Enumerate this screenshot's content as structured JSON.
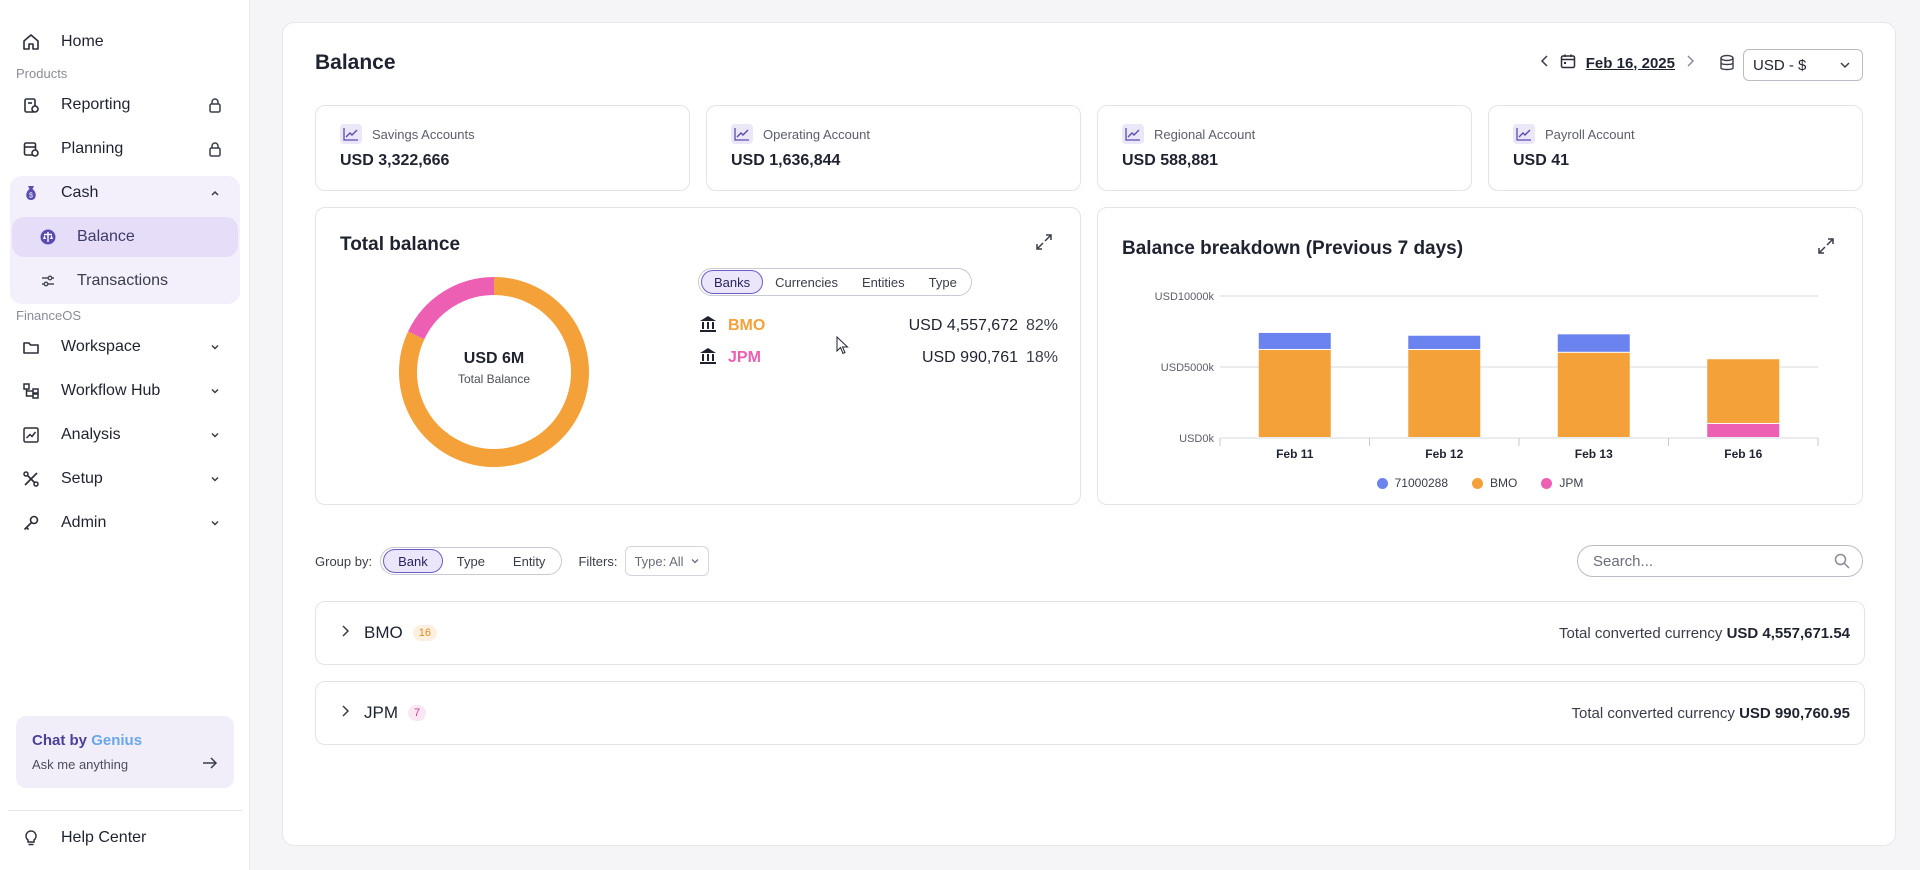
{
  "sidebar": {
    "home": "Home",
    "products_label": "Products",
    "reporting": "Reporting",
    "planning": "Planning",
    "cash": "Cash",
    "balance": "Balance",
    "transactions": "Transactions",
    "financeos_label": "FinanceOS",
    "workspace": "Workspace",
    "workflow_hub": "Workflow Hub",
    "analysis": "Analysis",
    "setup": "Setup",
    "admin": "Admin",
    "chat_title_prefix": "Chat by",
    "chat_title_brand": "Genius",
    "chat_placeholder": "Ask me anything",
    "help_center": "Help Center"
  },
  "header": {
    "title": "Balance",
    "date": "Feb 16, 2025",
    "currency": "USD - $"
  },
  "accounts": [
    {
      "name": "Savings Accounts",
      "value": "USD 3,322,666"
    },
    {
      "name": "Operating Account",
      "value": "USD 1,636,844"
    },
    {
      "name": "Regional Account",
      "value": "USD 588,881"
    },
    {
      "name": "Payroll Account",
      "value": "USD 41"
    }
  ],
  "total_balance": {
    "title": "Total balance",
    "center_value": "USD 6M",
    "center_label": "Total Balance",
    "tabs": [
      "Banks",
      "Currencies",
      "Entities",
      "Type"
    ],
    "active_tab": "Banks",
    "banks": [
      {
        "name": "BMO",
        "value": "USD 4,557,672",
        "pct": "82%",
        "color": "#f4a13a"
      },
      {
        "name": "JPM",
        "value": "USD 990,761",
        "pct": "18%",
        "color": "#ec5fb3"
      }
    ]
  },
  "breakdown": {
    "title": "Balance breakdown (Previous 7 days)"
  },
  "chart_data": [
    {
      "type": "pie",
      "categories": [
        "BMO",
        "JPM"
      ],
      "values": [
        82,
        18
      ],
      "colors": [
        "#f4a13a",
        "#ec5fb3"
      ],
      "title": "Total balance"
    },
    {
      "type": "bar",
      "stacked": true,
      "title": "Balance breakdown (Previous 7 days)",
      "categories": [
        "Feb 11",
        "Feb 12",
        "Feb 13",
        "Feb 16"
      ],
      "y_ticks": [
        "USD0k",
        "USD5000k",
        "USD10000k"
      ],
      "ylim": [
        0,
        10000
      ],
      "grid": true,
      "legend_position": "bottom",
      "series": [
        {
          "name": "71000288",
          "color": "#6b83ee",
          "values": [
            1200,
            1000,
            1300,
            0
          ]
        },
        {
          "name": "BMO",
          "color": "#f4a13a",
          "values": [
            6200,
            6200,
            6000,
            4557
          ]
        },
        {
          "name": "JPM",
          "color": "#ec5fb3",
          "values": [
            0,
            0,
            0,
            990
          ]
        }
      ]
    }
  ],
  "controls": {
    "group_by_label": "Group by:",
    "group_options": [
      "Bank",
      "Type",
      "Entity"
    ],
    "filters_label": "Filters:",
    "filter_value": "Type: All",
    "search_placeholder": "Search..."
  },
  "bank_sections": [
    {
      "name": "BMO",
      "count": "16",
      "total_label": "Total converted currency",
      "total_value": "USD 4,557,671.54",
      "badge_bg": "#fdf0e0",
      "badge_color": "#e08a20"
    },
    {
      "name": "JPM",
      "count": "7",
      "total_label": "Total converted currency",
      "total_value": "USD 990,760.95",
      "badge_bg": "#fbe6f3",
      "badge_color": "#c43f96"
    }
  ]
}
